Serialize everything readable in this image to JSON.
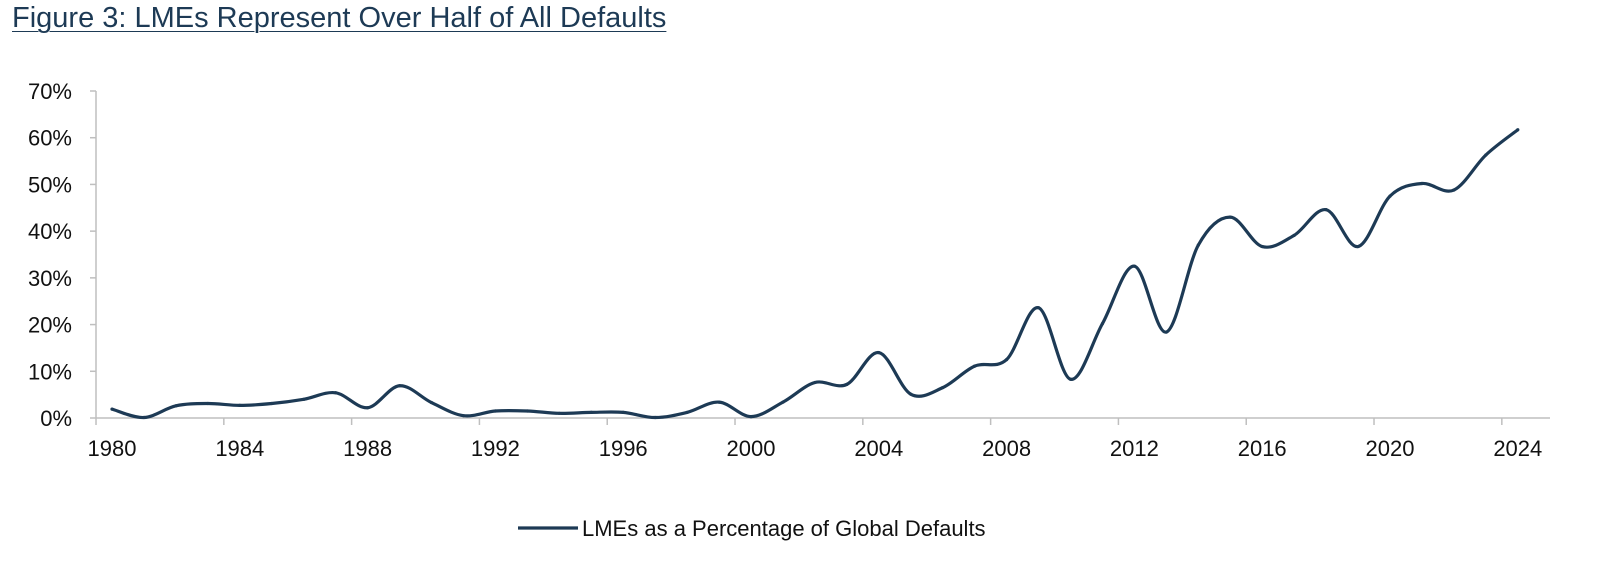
{
  "title": "Figure 3: LMEs Represent Over Half of All Defaults",
  "chart_data": {
    "type": "line",
    "title": "Figure 3: LMEs Represent Over Half of All Defaults",
    "xlabel": "",
    "ylabel": "",
    "x": [
      1980,
      1981,
      1982,
      1983,
      1984,
      1985,
      1986,
      1987,
      1988,
      1989,
      1990,
      1991,
      1992,
      1993,
      1994,
      1995,
      1996,
      1997,
      1998,
      1999,
      2000,
      2001,
      2002,
      2003,
      2004,
      2005,
      2006,
      2007,
      2008,
      2009,
      2010,
      2011,
      2012,
      2013,
      2014,
      2015,
      2016,
      2017,
      2018,
      2019,
      2020,
      2021,
      2022,
      2023,
      2024
    ],
    "series": [
      {
        "name": "LMEs as a Percentage of Global Defaults",
        "color": "#1d3a55",
        "values": [
          1.9,
          0.1,
          2.6,
          3.1,
          2.7,
          3.1,
          4.0,
          5.4,
          2.2,
          6.9,
          3.3,
          0.5,
          1.5,
          1.5,
          1.0,
          1.2,
          1.2,
          0.1,
          1.2,
          3.4,
          0.3,
          3.4,
          7.6,
          7.2,
          14.0,
          5.1,
          6.5,
          11.1,
          12.5,
          23.6,
          8.3,
          20.2,
          32.5,
          18.4,
          37.0,
          43.0,
          36.7,
          39.1,
          44.6,
          36.7,
          47.5,
          50.2,
          48.8,
          56.3,
          61.7
        ]
      }
    ],
    "ylim": [
      0,
      70
    ],
    "xlim": [
      1980,
      2024
    ],
    "y_ticks": [
      "0%",
      "10%",
      "20%",
      "30%",
      "40%",
      "50%",
      "60%",
      "70%"
    ],
    "x_ticks": [
      "1980",
      "1984",
      "1988",
      "1992",
      "1996",
      "2000",
      "2004",
      "2008",
      "2012",
      "2016",
      "2020",
      "2024"
    ],
    "smooth": true,
    "grid": false,
    "legend": "bottom"
  }
}
